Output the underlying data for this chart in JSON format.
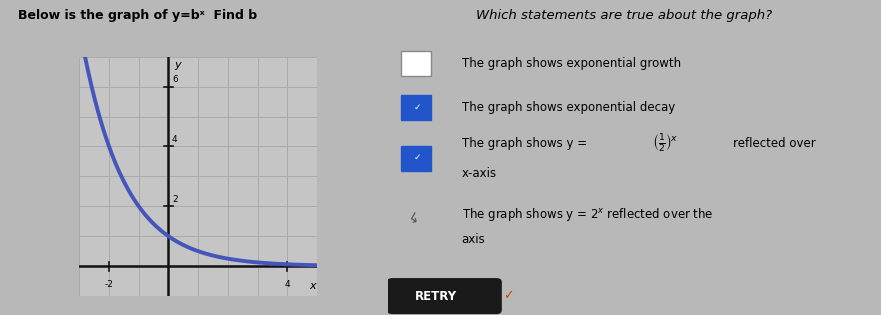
{
  "title_text": "Below is the graph of y=bˣ  Find b",
  "question_text": "Which statements are true about the graph?",
  "statements": [
    {
      "text": "The graph shows exponential growth",
      "checked": false,
      "checked_blue": false,
      "cursor": false
    },
    {
      "text": "The graph shows exponential decay",
      "checked": true,
      "checked_blue": true,
      "cursor": false
    },
    {
      "text": "The graph shows y = reflected over\nx-axis",
      "checked": true,
      "checked_blue": true,
      "cursor": false,
      "has_fraction": true
    },
    {
      "text": "The graph shows y = 2ˣ reflected over the\naxis",
      "checked": false,
      "checked_blue": false,
      "cursor": true
    }
  ],
  "retry_text": "RETRY",
  "graph_bg": "#c5c5c5",
  "grid_color": "#aaaaaa",
  "axis_color": "#111111",
  "curve_color": "#4455bb",
  "page_bg": "#b8b8b8",
  "paper_bg": "#c8c8c8",
  "x_axis_label": "x",
  "y_axis_label": "y",
  "y_tick_6": 6,
  "y_tick_4": 4,
  "y_tick_2": 2,
  "x_tick_neg2": -2,
  "x_tick_4": 4,
  "xlim": [
    -3,
    5
  ],
  "ylim": [
    -1,
    7
  ],
  "b_value": 0.5,
  "retry_bg": "#1a1a1a",
  "retry_text_color": "#ffffff",
  "retry_check_color": "#cc4400",
  "checkbox_blue": "#2255cc",
  "checkbox_empty_bg": "#ffffff",
  "checkbox_empty_border": "#888888"
}
